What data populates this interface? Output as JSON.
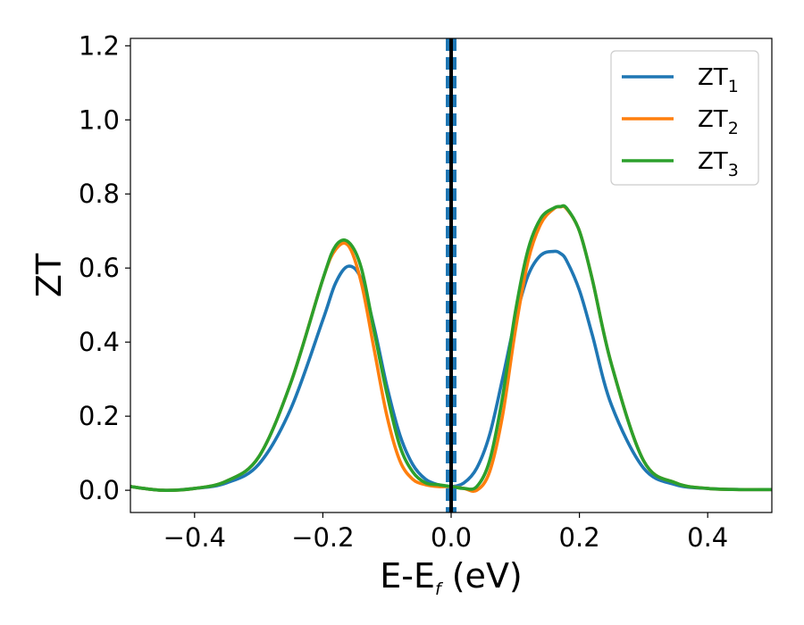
{
  "chart_data": {
    "type": "line",
    "xlabel": "E-E",
    "xlabel_sub": "f",
    "xlabel_unit": " (eV)",
    "ylabel": "ZT",
    "xlim": [
      -0.5,
      0.5
    ],
    "ylim": [
      -0.06,
      1.22
    ],
    "xticks": [
      -0.4,
      -0.2,
      0.0,
      0.2,
      0.4
    ],
    "xtick_labels": [
      "−0.4",
      "−0.2",
      "0.0",
      "0.2",
      "0.4"
    ],
    "yticks": [
      0.0,
      0.2,
      0.4,
      0.6,
      0.8,
      1.0,
      1.2
    ],
    "ytick_labels": [
      "0.0",
      "0.2",
      "0.4",
      "0.6",
      "0.8",
      "1.0",
      "1.2"
    ],
    "legend_position": "top-right",
    "vertical_lines": [
      {
        "x": 0.0,
        "color": "#000000",
        "style": "solid"
      },
      {
        "x": 0.0,
        "color": "#1f77b4",
        "style": "dashed"
      }
    ],
    "x": [
      -0.5,
      -0.45,
      -0.4,
      -0.35,
      -0.3,
      -0.25,
      -0.2,
      -0.18,
      -0.16,
      -0.14,
      -0.12,
      -0.1,
      -0.08,
      -0.06,
      -0.04,
      -0.02,
      0.0,
      0.02,
      0.04,
      0.06,
      0.08,
      0.1,
      0.12,
      0.14,
      0.16,
      0.17,
      0.18,
      0.2,
      0.22,
      0.25,
      0.3,
      0.35,
      0.4,
      0.45,
      0.5
    ],
    "series": [
      {
        "name": "ZT",
        "name_sub": "1",
        "color": "#1f77b4",
        "values": [
          0.01,
          0.0,
          0.005,
          0.02,
          0.07,
          0.22,
          0.46,
          0.56,
          0.605,
          0.57,
          0.44,
          0.28,
          0.15,
          0.07,
          0.03,
          0.015,
          0.01,
          0.02,
          0.06,
          0.15,
          0.3,
          0.46,
          0.58,
          0.635,
          0.645,
          0.64,
          0.62,
          0.54,
          0.42,
          0.23,
          0.06,
          0.015,
          0.005,
          0.002,
          0.002
        ]
      },
      {
        "name": "ZT",
        "name_sub": "2",
        "color": "#ff7f0e",
        "values": [
          0.01,
          0.0,
          0.005,
          0.025,
          0.09,
          0.29,
          0.57,
          0.65,
          0.66,
          0.56,
          0.38,
          0.2,
          0.08,
          0.03,
          0.015,
          0.01,
          0.01,
          0.005,
          0.0,
          0.05,
          0.2,
          0.43,
          0.62,
          0.72,
          0.76,
          0.765,
          0.76,
          0.7,
          0.57,
          0.34,
          0.08,
          0.02,
          0.005,
          0.002,
          0.002
        ]
      },
      {
        "name": "ZT",
        "name_sub": "3",
        "color": "#2ca02c",
        "values": [
          0.01,
          0.0,
          0.005,
          0.025,
          0.09,
          0.29,
          0.57,
          0.66,
          0.67,
          0.6,
          0.43,
          0.26,
          0.12,
          0.05,
          0.02,
          0.015,
          0.01,
          0.005,
          0.01,
          0.08,
          0.25,
          0.48,
          0.65,
          0.735,
          0.762,
          0.766,
          0.762,
          0.7,
          0.57,
          0.34,
          0.08,
          0.02,
          0.005,
          0.002,
          0.002
        ]
      }
    ]
  }
}
